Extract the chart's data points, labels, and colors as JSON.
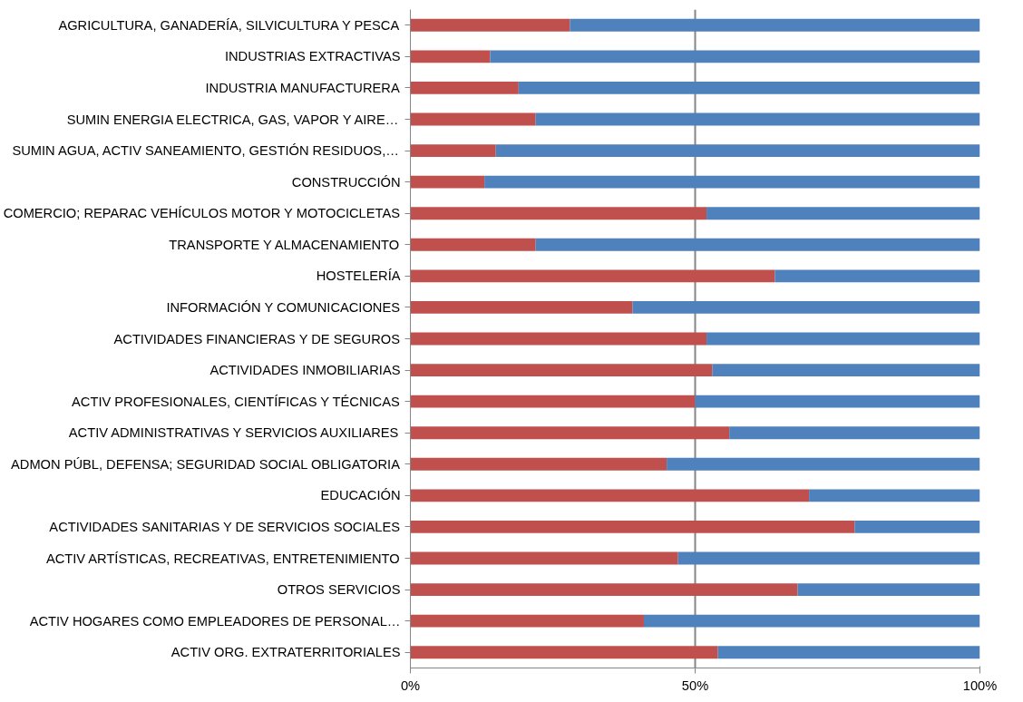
{
  "chart_data": {
    "type": "bar",
    "orientation": "horizontal",
    "stacked": true,
    "categories": [
      "AGRICULTURA, GANADERÍA, SILVICULTURA Y PESCA",
      "INDUSTRIAS EXTRACTIVAS",
      "INDUSTRIA MANUFACTURERA",
      "SUMIN ENERGIA ELECTRICA, GAS, VAPOR Y AIRE…",
      "SUMIN AGUA, ACTIV SANEAMIENTO, GESTIÓN RESIDUOS,…",
      "CONSTRUCCIÓN",
      "COMERCIO; REPARAC VEHÍCULOS MOTOR Y MOTOCICLETAS",
      "TRANSPORTE Y ALMACENAMIENTO",
      "HOSTELERÍA",
      "INFORMACIÓN Y COMUNICACIONES",
      "ACTIVIDADES FINANCIERAS Y DE SEGUROS",
      "ACTIVIDADES INMOBILIARIAS",
      "ACTIV PROFESIONALES, CIENTÍFICAS Y TÉCNICAS",
      "ACTIV ADMINISTRATIVAS Y SERVICIOS AUXILIARES",
      "ADMON PÚBL, DEFENSA; SEGURIDAD SOCIAL OBLIGATORIA",
      "EDUCACIÓN",
      "ACTIVIDADES SANITARIAS Y DE SERVICIOS SOCIALES",
      "ACTIV ARTÍSTICAS, RECREATIVAS, ENTRETENIMIENTO",
      "OTROS SERVICIOS",
      "ACTIV HOGARES COMO EMPLEADORES DE PERSONAL…",
      "ACTIV ORG. EXTRATERRITORIALES"
    ],
    "series": [
      {
        "color": "#c0504d",
        "values": [
          28,
          14,
          19,
          22,
          15,
          13,
          52,
          22,
          64,
          39,
          52,
          53,
          50,
          56,
          45,
          70,
          78,
          47,
          68,
          41,
          54
        ]
      },
      {
        "color": "#4f81bd",
        "values": [
          72,
          86,
          81,
          78,
          85,
          87,
          48,
          78,
          36,
          61,
          48,
          47,
          50,
          44,
          55,
          30,
          22,
          53,
          32,
          59,
          46
        ]
      }
    ],
    "xlim": [
      0,
      100
    ],
    "xticks": [
      {
        "value": 0,
        "label": "0%"
      },
      {
        "value": 50,
        "label": "50%"
      },
      {
        "value": 100,
        "label": "100%"
      }
    ],
    "grid": "x"
  }
}
